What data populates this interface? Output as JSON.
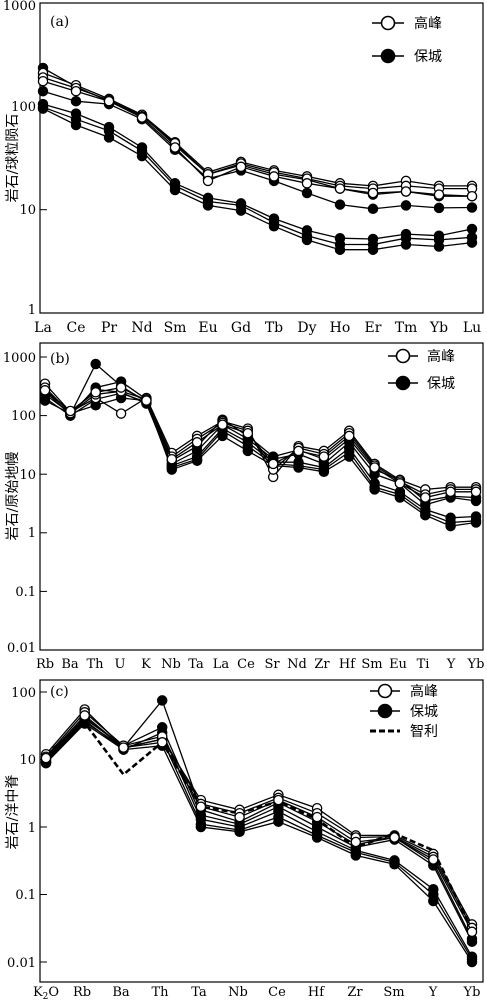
{
  "chart_data": [
    {
      "type": "line",
      "panel_label": "(a)",
      "ylabel": "岩石/球粒陨石",
      "yscale": "log",
      "ylim": [
        1,
        1000
      ],
      "y_ticks": [
        "1",
        "10",
        "100",
        "1000"
      ],
      "categories": [
        "La",
        "Ce",
        "Pr",
        "Nd",
        "Sm",
        "Eu",
        "Gd",
        "Tb",
        "Dy",
        "Ho",
        "Er",
        "Tm",
        "Yb",
        "Lu"
      ],
      "legend": [
        {
          "label": "高峰",
          "marker": "open-circle"
        },
        {
          "label": "保城",
          "marker": "filled-circle"
        }
      ],
      "series": [
        {
          "group": "高峰",
          "marker": "open",
          "values": [
            210,
            160,
            118,
            83,
            45,
            23,
            29,
            24,
            21,
            18,
            17,
            19,
            17,
            17
          ]
        },
        {
          "group": "高峰",
          "marker": "open",
          "values": [
            190,
            150,
            115,
            80,
            44,
            22,
            28,
            23,
            20,
            17,
            16,
            17,
            16,
            16
          ]
        },
        {
          "group": "高峰",
          "marker": "open",
          "values": [
            175,
            140,
            112,
            78,
            40,
            19,
            26,
            21,
            18,
            16,
            14.5,
            15,
            14,
            13.5
          ]
        },
        {
          "group": "保城",
          "marker": "filled",
          "values": [
            235,
            155,
            112,
            82,
            42,
            22,
            27,
            22,
            19.5,
            16,
            14,
            15,
            13.5,
            13.5
          ]
        },
        {
          "group": "保城",
          "marker": "filled",
          "values": [
            140,
            112,
            105,
            75,
            38,
            20,
            24,
            19,
            14.5,
            11.2,
            10.2,
            11,
            10.4,
            10.5
          ]
        },
        {
          "group": "保城",
          "marker": "filled",
          "values": [
            105,
            85,
            63,
            40,
            18,
            13,
            11.5,
            8.2,
            6.3,
            5.3,
            5.2,
            5.8,
            5.6,
            6.5
          ]
        },
        {
          "group": "保城",
          "marker": "filled",
          "values": [
            98,
            75,
            58,
            37,
            17,
            12,
            11,
            7.5,
            5.6,
            4.6,
            4.6,
            5.3,
            5.1,
            5.4
          ]
        },
        {
          "group": "保城",
          "marker": "filled",
          "values": [
            95,
            66,
            50,
            33,
            15.5,
            11,
            9.8,
            6.9,
            5.1,
            4.1,
            4.1,
            4.6,
            4.4,
            4.8
          ]
        }
      ]
    },
    {
      "type": "line",
      "panel_label": "(b)",
      "ylabel": "岩石/原始地幔",
      "yscale": "log",
      "ylim": [
        0.01,
        1000
      ],
      "y_ticks": [
        "0.01",
        "0.1",
        "1",
        "10",
        "100",
        "1000"
      ],
      "categories": [
        "Rb",
        "Ba",
        "Th",
        "U",
        "K",
        "Nb",
        "Ta",
        "La",
        "Ce",
        "Sr",
        "Nd",
        "Zr",
        "Hf",
        "Sm",
        "Eu",
        "Ti",
        "Y",
        "Yb"
      ],
      "legend": [
        {
          "label": "高峰",
          "marker": "open-circle"
        },
        {
          "label": "保城",
          "marker": "filled-circle"
        }
      ],
      "series": [
        {
          "group": "高峰",
          "marker": "open",
          "values": [
            350,
            115,
            200,
            108,
            200,
            23,
            45,
            80,
            60,
            9,
            30,
            25,
            55,
            15,
            8,
            5.5,
            6,
            6
          ]
        },
        {
          "group": "高峰",
          "marker": "open",
          "values": [
            300,
            110,
            230,
            260,
            190,
            20,
            40,
            75,
            55,
            12,
            28,
            22,
            50,
            14,
            7.5,
            4.5,
            5.5,
            5.5
          ]
        },
        {
          "group": "高峰",
          "marker": "open",
          "values": [
            270,
            120,
            250,
            300,
            180,
            18,
            35,
            70,
            50,
            15,
            25,
            20,
            45,
            13,
            7,
            4,
            5,
            5
          ]
        },
        {
          "group": "保城",
          "marker": "filled",
          "values": [
            280,
            100,
            300,
            380,
            190,
            17,
            30,
            85,
            45,
            20,
            26,
            18,
            40,
            12,
            8,
            3.5,
            4.2,
            4
          ]
        },
        {
          "group": "保城",
          "marker": "filled",
          "values": [
            260,
            105,
            760,
            320,
            170,
            15,
            25,
            70,
            40,
            18,
            22,
            15,
            35,
            10,
            7,
            3,
            4,
            3.5
          ]
        },
        {
          "group": "保城",
          "marker": "filled",
          "values": [
            230,
            110,
            280,
            250,
            160,
            14,
            20,
            60,
            35,
            16,
            16,
            13,
            28,
            7,
            5,
            2.5,
            1.8,
            1.9
          ]
        },
        {
          "group": "保城",
          "marker": "filled",
          "values": [
            200,
            100,
            190,
            240,
            170,
            13,
            18,
            55,
            30,
            15,
            14,
            12,
            24,
            6,
            4.5,
            2.2,
            1.5,
            1.6
          ]
        },
        {
          "group": "保城",
          "marker": "filled",
          "values": [
            180,
            108,
            150,
            200,
            180,
            12,
            17,
            45,
            25,
            14,
            13,
            11,
            20,
            5.5,
            4,
            2,
            1.3,
            1.5
          ]
        }
      ]
    },
    {
      "type": "line",
      "panel_label": "(c)",
      "ylabel": "岩石/洋中脊",
      "yscale": "log",
      "ylim": [
        0.01,
        100
      ],
      "y_ticks": [
        "0.01",
        "0.1",
        "1",
        "10",
        "100"
      ],
      "categories": [
        "K2O",
        "Rb",
        "Ba",
        "Th",
        "Ta",
        "Nb",
        "Ce",
        "Hf",
        "Zr",
        "Sm",
        "Y",
        "Yb"
      ],
      "legend": [
        {
          "label": "高峰",
          "marker": "open-circle"
        },
        {
          "label": "保城",
          "marker": "filled-circle"
        },
        {
          "label": "智利",
          "marker": "dashed-line"
        }
      ],
      "series": [
        {
          "group": "高峰",
          "marker": "open",
          "values": [
            12,
            55,
            15,
            20,
            2.5,
            1.8,
            3.0,
            1.9,
            0.75,
            0.75,
            0.4,
            0.036
          ]
        },
        {
          "group": "高峰",
          "marker": "open",
          "values": [
            11,
            50,
            16,
            22,
            2.2,
            1.6,
            2.7,
            1.6,
            0.7,
            0.72,
            0.36,
            0.032
          ]
        },
        {
          "group": "高峰",
          "marker": "open",
          "values": [
            10.5,
            45,
            15,
            18,
            2.0,
            1.4,
            2.5,
            1.4,
            0.6,
            0.7,
            0.33,
            0.028
          ]
        },
        {
          "group": "保城",
          "marker": "filled",
          "values": [
            10,
            42,
            15,
            75,
            1.8,
            1.2,
            2.3,
            1.2,
            0.55,
            0.7,
            0.3,
            0.022
          ]
        },
        {
          "group": "保城",
          "marker": "filled",
          "values": [
            9.5,
            40,
            16,
            30,
            1.5,
            1.1,
            2.0,
            1.0,
            0.5,
            0.65,
            0.27,
            0.02
          ]
        },
        {
          "group": "保城",
          "marker": "filled",
          "values": [
            9.2,
            38,
            14,
            25,
            1.3,
            1.0,
            1.7,
            0.85,
            0.45,
            0.32,
            0.12,
            0.012
          ]
        },
        {
          "group": "保城",
          "marker": "filled",
          "values": [
            9,
            36,
            15,
            20,
            1.1,
            0.9,
            1.4,
            0.75,
            0.42,
            0.3,
            0.1,
            0.011
          ]
        },
        {
          "group": "保城",
          "marker": "filled",
          "values": [
            8.8,
            34,
            14,
            16,
            1.0,
            0.85,
            1.2,
            0.7,
            0.38,
            0.28,
            0.08,
            0.01
          ]
        },
        {
          "group": "智利",
          "marker": "dashed",
          "values": [
            12,
            35,
            6,
            18,
            2.0,
            1.6,
            2.4,
            1.3,
            0.5,
            0.8,
            0.45,
            0.03
          ]
        }
      ]
    }
  ]
}
